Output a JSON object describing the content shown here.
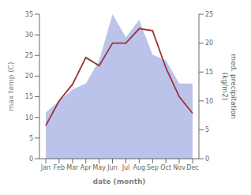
{
  "chart_data": {
    "type": "line",
    "categories": [
      "Jan",
      "Feb",
      "Mar",
      "Apr",
      "May",
      "Jun",
      "Jul",
      "Aug",
      "Sep",
      "Oct",
      "Nov",
      "Dec"
    ],
    "series": [
      {
        "type": "area",
        "color": "#b0b8e8",
        "axis": "y2",
        "values": [
          8.0,
          10.0,
          12.0,
          13.0,
          17.0,
          25.0,
          21.0,
          24.0,
          18.0,
          17.0,
          13.0,
          13.0
        ]
      },
      {
        "type": "line",
        "color": "#993333",
        "values": [
          8.0,
          14.0,
          18.0,
          24.5,
          22.5,
          28.0,
          28.0,
          31.5,
          31.0,
          22.0,
          15.0,
          11.0
        ]
      }
    ],
    "xlabel": "date (month)",
    "ylabel": "max temp (C)",
    "y2label": "med. precipitation\n(kg/m2)",
    "ylim": [
      0,
      35
    ],
    "yticks": [
      0,
      5,
      10,
      15,
      20,
      25,
      30,
      35
    ],
    "y2lim": [
      0,
      25
    ],
    "y2ticks": [
      0,
      5,
      10,
      15,
      20,
      25
    ],
    "grid": false
  }
}
